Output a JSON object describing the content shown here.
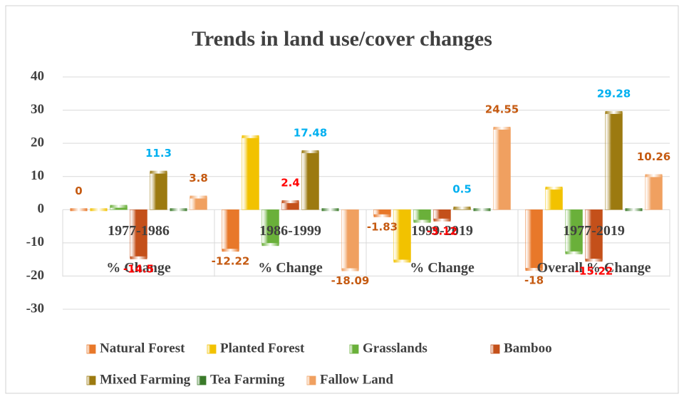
{
  "chart_data": {
    "type": "bar",
    "title": "Trends in land use/cover changes",
    "categories": [
      [
        "1977-1986",
        "% Change"
      ],
      [
        "1986-1999",
        "% Change"
      ],
      [
        "1999-2019",
        "% Change"
      ],
      [
        "1977-2019",
        "Overall % Change"
      ]
    ],
    "ylim": [
      -30,
      40
    ],
    "yticks": [
      -30,
      -20,
      -10,
      0,
      10,
      20,
      30,
      40
    ],
    "grid": true,
    "legend": "bottom",
    "series": [
      {
        "name": "Natural Forest",
        "color": "#e8782a",
        "values": [
          0,
          -12.22,
          -1.83,
          -18
        ],
        "show_labels": true,
        "label_color": "#c55a11"
      },
      {
        "name": "Planted Forest",
        "color": "#f2c200",
        "values": [
          0,
          22,
          -15.5,
          6.5
        ],
        "show_labels": false
      },
      {
        "name": "Grasslands",
        "color": "#6ab03a",
        "values": [
          1,
          -10.5,
          -3.5,
          -13
        ],
        "show_labels": false
      },
      {
        "name": "Bamboo",
        "color": "#c4501a",
        "values": [
          -14.5,
          2.4,
          -3.12,
          -15.22
        ],
        "show_labels": true,
        "label_color": "#ff0000"
      },
      {
        "name": "Mixed Farming",
        "color": "#9c7a10",
        "values": [
          11.3,
          17.48,
          0.5,
          29.28
        ],
        "show_labels": true,
        "label_color": "#00b0f0"
      },
      {
        "name": "Tea Farming",
        "color": "#3a7a2a",
        "values": [
          0,
          0,
          0,
          0
        ],
        "show_labels": false
      },
      {
        "name": "Fallow Land",
        "color": "#f0a060",
        "values": [
          3.8,
          -18.09,
          24.55,
          10.26
        ],
        "show_labels": true,
        "label_color": "#c55a11"
      }
    ]
  }
}
